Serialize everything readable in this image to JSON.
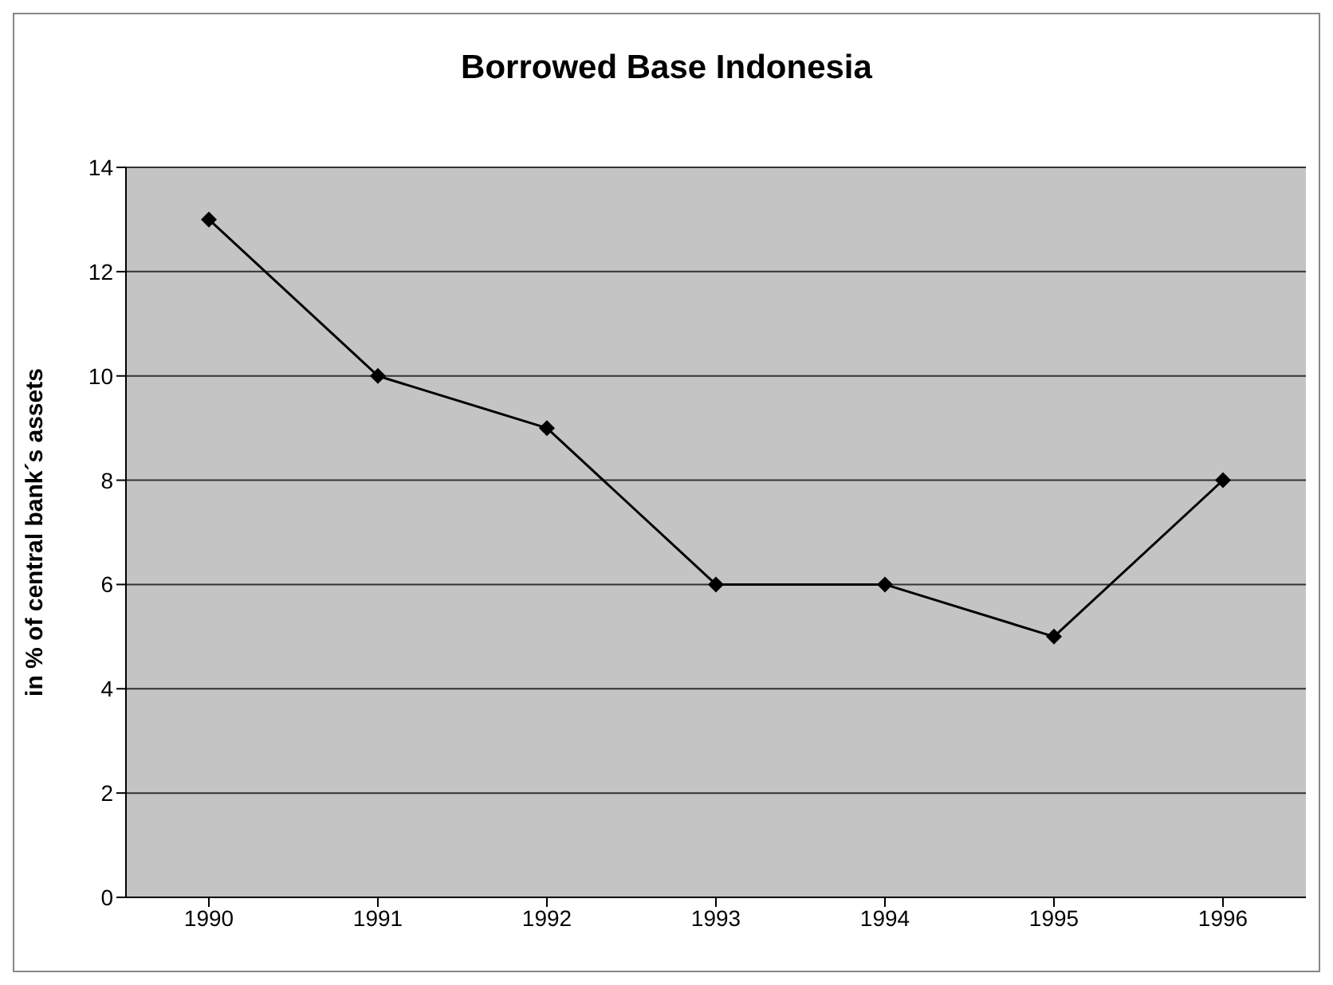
{
  "chart_data": {
    "type": "line",
    "title": "Borrowed Base Indonesia",
    "ylabel": "in % of central bank´s assets",
    "categories": [
      "1990",
      "1991",
      "1992",
      "1993",
      "1994",
      "1995",
      "1996"
    ],
    "series": [
      {
        "color": "#000000",
        "values": [
          13,
          10,
          9,
          6,
          6,
          5,
          8
        ]
      }
    ],
    "ylim": [
      0,
      14
    ],
    "yticks": [
      0,
      2,
      4,
      6,
      8,
      10,
      12,
      14
    ],
    "grid": "y",
    "marker": "diamond",
    "line_style": "solid"
  }
}
